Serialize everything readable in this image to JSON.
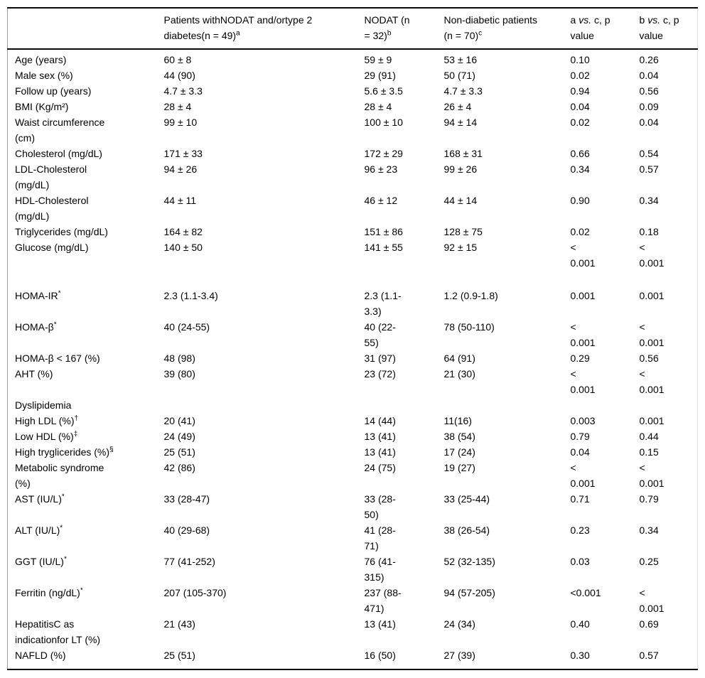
{
  "colors": {
    "background": "#ffffff",
    "text": "#000000",
    "rule": "#0a0a0a"
  },
  "table": {
    "header": {
      "col_label": "",
      "col_a": {
        "text": "Patients withNODAT and/ortype 2\ndiabetes(n = 49)",
        "sup": "a"
      },
      "col_b": {
        "text": "NODAT (n\n= 32)",
        "sup": "b"
      },
      "col_c": {
        "text": "Non-diabetic patients\n(n = 70)",
        "sup": "c"
      },
      "col_p_ac": {
        "pre": "a ",
        "vs": "vs.",
        "post": " c, p\nvalue"
      },
      "col_p_bc": {
        "pre": "b ",
        "vs": "vs.",
        "post": " c, p\nvalue"
      }
    },
    "rows": [
      {
        "label": "Age (years)",
        "sup": "",
        "a": "60 ± 8",
        "b": "59 ± 9",
        "c": "53 ± 16",
        "p_ac": "0.10",
        "p_bc": "0.26"
      },
      {
        "label": "Male sex (%)",
        "sup": "",
        "a": "44 (90)",
        "b": "29 (91)",
        "c": "50 (71)",
        "p_ac": "0.02",
        "p_bc": "0.04"
      },
      {
        "label": "Follow up (years)",
        "sup": "",
        "a": "4.7 ± 3.3",
        "b": "5.6 ± 3.5",
        "c": "4.7 ± 3.3",
        "p_ac": "0.94",
        "p_bc": "0.56"
      },
      {
        "label": "BMI (Kg/m²)",
        "sup": "",
        "a": "28 ± 4",
        "b": "28 ± 4",
        "c": "26 ± 4",
        "p_ac": "0.04",
        "p_bc": "0.09"
      },
      {
        "label": "Waist circumference\n(cm)",
        "sup": "",
        "a": "99 ± 10",
        "b": "100 ± 10",
        "c": "94 ± 14",
        "p_ac": "0.02",
        "p_bc": "0.04"
      },
      {
        "label": "Cholesterol (mg/dL)",
        "sup": "",
        "a": "171 ± 33",
        "b": "172 ± 29",
        "c": "168 ± 31",
        "p_ac": "0.66",
        "p_bc": "0.54"
      },
      {
        "label": "LDL-Cholesterol\n(mg/dL)",
        "sup": "",
        "a": "94 ± 26",
        "b": "96 ± 23",
        "c": "99 ± 26",
        "p_ac": "0.34",
        "p_bc": "0.57"
      },
      {
        "label": "HDL-Cholesterol\n(mg/dL)",
        "sup": "",
        "a": "44 ± 11",
        "b": "46 ± 12",
        "c": "44 ± 14",
        "p_ac": "0.90",
        "p_bc": "0.34"
      },
      {
        "label": "Triglycerides (mg/dL)",
        "sup": "",
        "a": "164 ± 82",
        "b": "151 ± 86",
        "c": "128 ± 75",
        "p_ac": "0.02",
        "p_bc": "0.18"
      },
      {
        "label": "Glucose (mg/dL)",
        "sup": "",
        "a": "140 ± 50",
        "b": "141 ± 55",
        "c": "92 ± 15",
        "p_ac": "<\n0.001",
        "p_bc": "<\n0.001"
      },
      {
        "label": "HOMA-IR",
        "sup": "*",
        "a": "2.3 (1.1-3.4)",
        "b": "2.3 (1.1-\n3.3)",
        "c": "1.2 (0.9-1.8)",
        "p_ac": "0.001",
        "p_bc": "0.001"
      },
      {
        "label": "HOMA-β",
        "sup": "*",
        "a": "40 (24-55)",
        "b": "40 (22-\n55)",
        "c": "78 (50-110)",
        "p_ac": "<\n0.001",
        "p_bc": "<\n0.001"
      },
      {
        "label": "HOMA-β < 167 (%)",
        "sup": "",
        "a": "48 (98)",
        "b": "31 (97)",
        "c": "64 (91)",
        "p_ac": "0.29",
        "p_bc": "0.56"
      },
      {
        "label": "AHT (%)",
        "sup": "",
        "a": "39 (80)",
        "b": "23 (72)",
        "c": "21 (30)",
        "p_ac": "<\n0.001",
        "p_bc": "<\n0.001"
      },
      {
        "label": "Dyslipidemia",
        "sup": "",
        "a": "",
        "b": "",
        "c": "",
        "p_ac": "",
        "p_bc": ""
      },
      {
        "label": "High LDL (%)",
        "sup": "†",
        "a": "20 (41)",
        "b": "14 (44)",
        "c": "11(16)",
        "p_ac": "0.003",
        "p_bc": "0.001"
      },
      {
        "label": "Low HDL (%)",
        "sup": "‡",
        "a": "24 (49)",
        "b": "13 (41)",
        "c": "38 (54)",
        "p_ac": "0.79",
        "p_bc": "0.44"
      },
      {
        "label": "High tryglicerides (%)",
        "sup": "§",
        "a": "25 (51)",
        "b": "13 (41)",
        "c": "17 (24)",
        "p_ac": "0.04",
        "p_bc": "0.15"
      },
      {
        "label": "Metabolic syndrome\n(%)",
        "sup": "",
        "a": "42 (86)",
        "b": "24 (75)",
        "c": "19 (27)",
        "p_ac": "<\n0.001",
        "p_bc": "<\n0.001"
      },
      {
        "label": "AST (IU/L)",
        "sup": "*",
        "a": "33 (28-47)",
        "b": "33 (28-\n50)",
        "c": "33 (25-44)",
        "p_ac": "0.71",
        "p_bc": "0.79"
      },
      {
        "label": "ALT (IU/L)",
        "sup": "*",
        "a": "40 (29-68)",
        "b": "41 (28-\n71)",
        "c": "38 (26-54)",
        "p_ac": "0.23",
        "p_bc": "0.34"
      },
      {
        "label": "GGT (IU/L)",
        "sup": "*",
        "a": "77 (41-252)",
        "b": "76 (41-\n315)",
        "c": "52 (32-135)",
        "p_ac": "0.03",
        "p_bc": "0.25"
      },
      {
        "label": "Ferritin (ng/dL)",
        "sup": "*",
        "a": "207 (105-370)",
        "b": "237 (88-\n471)",
        "c": "94 (57-205)",
        "p_ac": "<0.001",
        "p_bc": "<\n0.001"
      },
      {
        "label": "HepatitisC as\nindicationfor LT (%)",
        "sup": "",
        "a": "21 (43)",
        "b": "13 (41)",
        "c": "24 (34)",
        "p_ac": "0.40",
        "p_bc": "0.69"
      },
      {
        "label": "NAFLD (%)",
        "sup": "",
        "a": "25 (51)",
        "b": "16 (50)",
        "c": "27 (39)",
        "p_ac": "0.30",
        "p_bc": "0.57"
      }
    ]
  }
}
